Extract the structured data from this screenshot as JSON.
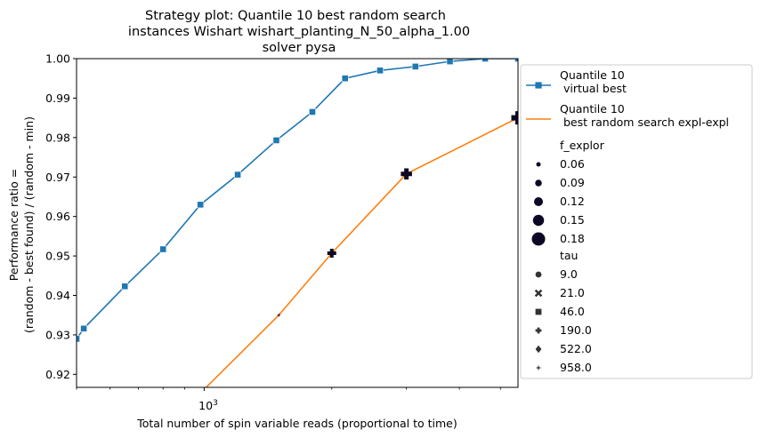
{
  "chart_data": {
    "type": "line",
    "title": [
      "Strategy plot: Quantile 10 best random search",
      "instances Wishart wishart_planting_N_50_alpha_1.00",
      "solver pysa"
    ],
    "xlabel": "Total number of spin variable reads (proportional to time)",
    "ylabel": [
      "Performance ratio =",
      "(random - best found) / (random - min)"
    ],
    "x_scale": "log",
    "xlim": [
      500,
      5500
    ],
    "ylim": [
      0.9167,
      1.0
    ],
    "x_tick_labels": [
      {
        "value": 1000,
        "base": "10",
        "exp": "3"
      }
    ],
    "x_minor_ticks": [
      500,
      600,
      700,
      800,
      900,
      2000,
      3000,
      4000,
      5000
    ],
    "y_ticks": [
      0.92,
      0.93,
      0.94,
      0.95,
      0.96,
      0.97,
      0.98,
      0.99,
      1.0
    ],
    "y_tick_labels": [
      "0.92",
      "0.93",
      "0.94",
      "0.95",
      "0.96",
      "0.97",
      "0.98",
      "0.99",
      "1.00"
    ],
    "grid": false,
    "legend_position": "outside-right",
    "series": [
      {
        "name": "Quantile 10\n virtual best",
        "color": "#1f77b4",
        "marker": "square",
        "x": [
          500,
          520,
          650,
          800,
          980,
          1200,
          1480,
          1800,
          2150,
          2600,
          3150,
          3800,
          4600,
          5500
        ],
        "y": [
          0.929,
          0.9316,
          0.9423,
          0.9517,
          0.963,
          0.9706,
          0.9793,
          0.9865,
          0.995,
          0.997,
          0.998,
          0.9993,
          1.0,
          1.0
        ]
      },
      {
        "name": "Quantile 10\n best random search expl-expl",
        "color": "#ff7f0e",
        "marker": "none",
        "x": [
          1000,
          1500,
          2000,
          3000,
          5500
        ],
        "y": [
          0.9162,
          0.935,
          0.9507,
          0.9708,
          0.985
        ]
      }
    ],
    "points": [
      {
        "x": 1500,
        "y": 0.935,
        "marker": "star",
        "size": 0.06
      },
      {
        "x": 2000,
        "y": 0.9507,
        "marker": "plus",
        "size": 0.12
      },
      {
        "x": 3000,
        "y": 0.9708,
        "marker": "plus",
        "size": 0.15
      },
      {
        "x": 5500,
        "y": 0.985,
        "marker": "plus",
        "size": 0.18
      }
    ],
    "point_color": "#0b0724",
    "size_legend": {
      "title": "f_explor",
      "items": [
        {
          "label": "0.06",
          "value": 0.06
        },
        {
          "label": "0.09",
          "value": 0.09
        },
        {
          "label": "0.12",
          "value": 0.12
        },
        {
          "label": "0.15",
          "value": 0.15
        },
        {
          "label": "0.18",
          "value": 0.18
        }
      ]
    },
    "marker_legend": {
      "title": "tau",
      "items": [
        {
          "label": "9.0",
          "marker": "circle"
        },
        {
          "label": "21.0",
          "marker": "x"
        },
        {
          "label": "46.0",
          "marker": "square"
        },
        {
          "label": "190.0",
          "marker": "plus"
        },
        {
          "label": "522.0",
          "marker": "diamond"
        },
        {
          "label": "958.0",
          "marker": "star"
        }
      ]
    }
  }
}
